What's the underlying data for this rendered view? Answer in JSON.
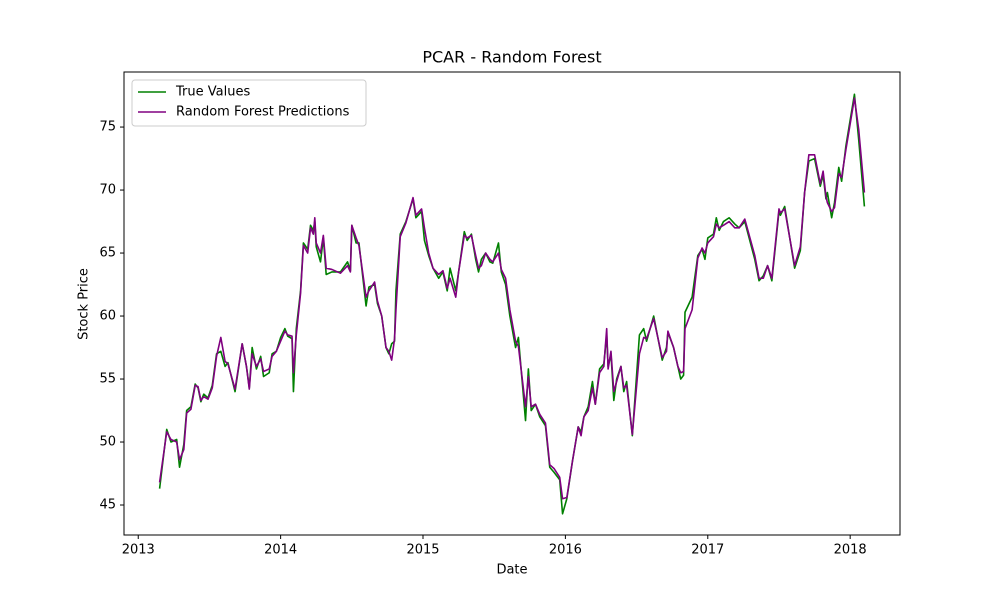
{
  "chart_data": {
    "type": "line",
    "title": "PCAR - Random Forest",
    "x_label": "Date",
    "y_label": "Stock Price",
    "xlim": [
      2012.9,
      2018.35
    ],
    "xticks": [
      2013,
      2014,
      2015,
      2016,
      2017,
      2018
    ],
    "ylim": [
      42.62,
      79.37
    ],
    "yticks": [
      45,
      50,
      55,
      60,
      65,
      70,
      75
    ],
    "grid": false,
    "legend": "upper left",
    "x": [
      2013.15,
      2013.2,
      2013.23,
      2013.27,
      2013.29,
      2013.32,
      2013.34,
      2013.37,
      2013.4,
      2013.42,
      2013.44,
      2013.46,
      2013.49,
      2013.52,
      2013.55,
      2013.58,
      2013.61,
      2013.63,
      2013.68,
      2013.73,
      2013.76,
      2013.78,
      2013.8,
      2013.83,
      2013.86,
      2013.88,
      2013.92,
      2013.94,
      2013.97,
      2014.0,
      2014.03,
      2014.05,
      2014.08,
      2014.09,
      2014.11,
      2014.14,
      2014.16,
      2014.19,
      2014.21,
      2014.23,
      2014.24,
      2014.25,
      2014.28,
      2014.3,
      2014.32,
      2014.36,
      2014.42,
      2014.47,
      2014.49,
      2014.5,
      2014.53,
      2014.55,
      2014.6,
      2014.62,
      2014.66,
      2014.68,
      2014.71,
      2014.74,
      2014.76,
      2014.78,
      2014.8,
      2014.81,
      2014.84,
      2014.88,
      2014.93,
      2014.95,
      2014.99,
      2015.01,
      2015.04,
      2015.07,
      2015.11,
      2015.14,
      2015.17,
      2015.19,
      2015.23,
      2015.25,
      2015.29,
      2015.31,
      2015.34,
      2015.37,
      2015.39,
      2015.41,
      2015.44,
      2015.47,
      2015.49,
      2015.53,
      2015.55,
      2015.58,
      2015.61,
      2015.65,
      2015.67,
      2015.72,
      2015.74,
      2015.76,
      2015.79,
      2015.82,
      2015.86,
      2015.89,
      2015.92,
      2015.96,
      2015.98,
      2016.01,
      2016.05,
      2016.09,
      2016.11,
      2016.13,
      2016.16,
      2016.19,
      2016.21,
      2016.24,
      2016.27,
      2016.29,
      2016.3,
      2016.32,
      2016.34,
      2016.36,
      2016.39,
      2016.41,
      2016.43,
      2016.47,
      2016.52,
      2016.55,
      2016.57,
      2016.62,
      2016.68,
      2016.71,
      2016.72,
      2016.76,
      2016.79,
      2016.81,
      2016.83,
      2016.84,
      2016.89,
      2016.93,
      2016.96,
      2016.98,
      2017.0,
      2017.04,
      2017.06,
      2017.08,
      2017.11,
      2017.15,
      2017.19,
      2017.22,
      2017.26,
      2017.33,
      2017.36,
      2017.39,
      2017.42,
      2017.45,
      2017.5,
      2017.51,
      2017.54,
      2017.61,
      2017.65,
      2017.68,
      2017.71,
      2017.75,
      2017.79,
      2017.81,
      2017.83,
      2017.84,
      2017.87,
      2017.89,
      2017.92,
      2017.94,
      2017.97,
      2018.03,
      2018.06,
      2018.1
    ],
    "series": [
      {
        "name": "True Values",
        "color": "#008000",
        "values": [
          46.3,
          51.0,
          50.0,
          50.2,
          48.0,
          49.8,
          52.5,
          52.8,
          54.6,
          54.3,
          53.2,
          53.8,
          53.5,
          54.5,
          57.0,
          57.2,
          56.0,
          56.3,
          54.0,
          57.8,
          56.0,
          54.3,
          57.5,
          55.8,
          56.8,
          55.2,
          55.5,
          57.0,
          57.2,
          58.3,
          59.0,
          58.4,
          58.2,
          54.0,
          59.0,
          62.0,
          65.8,
          65.3,
          67.2,
          66.8,
          67.5,
          65.5,
          64.3,
          66.2,
          63.3,
          63.5,
          63.5,
          64.3,
          63.6,
          67.2,
          65.8,
          65.8,
          60.8,
          62.3,
          62.5,
          61.0,
          60.0,
          57.5,
          57.0,
          57.8,
          58.0,
          62.0,
          66.5,
          67.5,
          69.3,
          67.8,
          68.3,
          66.0,
          64.8,
          63.8,
          63.0,
          63.5,
          62.0,
          63.8,
          62.0,
          63.5,
          66.7,
          66.0,
          66.5,
          64.5,
          63.5,
          64.5,
          65.0,
          64.3,
          64.2,
          65.8,
          63.5,
          62.5,
          60.0,
          57.5,
          58.3,
          51.7,
          55.8,
          52.5,
          53.0,
          52.0,
          51.3,
          48.0,
          47.6,
          47.0,
          44.3,
          45.5,
          48.5,
          51.2,
          50.8,
          52.0,
          52.8,
          54.8,
          53.0,
          55.8,
          56.2,
          58.5,
          56.0,
          57.0,
          53.3,
          55.0,
          56.0,
          54.0,
          54.8,
          50.5,
          58.5,
          59.0,
          58.0,
          60.0,
          56.5,
          57.5,
          58.7,
          57.5,
          56.0,
          55.0,
          55.3,
          60.3,
          61.5,
          64.8,
          65.3,
          64.5,
          66.2,
          66.5,
          67.8,
          66.8,
          67.5,
          67.8,
          67.3,
          67.0,
          67.5,
          64.5,
          62.8,
          63.2,
          64.0,
          62.8,
          68.3,
          68.0,
          68.7,
          63.8,
          65.2,
          69.8,
          72.3,
          72.5,
          70.3,
          71.2,
          69.3,
          69.8,
          67.8,
          69.0,
          71.8,
          70.7,
          73.5,
          77.6,
          74.0,
          68.7
        ]
      },
      {
        "name": "Random Forest Predictions",
        "color": "#800080",
        "values": [
          46.8,
          50.8,
          50.2,
          50.0,
          48.6,
          49.4,
          52.3,
          52.6,
          54.5,
          54.4,
          53.3,
          53.6,
          53.4,
          54.3,
          56.8,
          58.3,
          56.4,
          56.2,
          54.2,
          57.8,
          56.0,
          54.2,
          57.0,
          56.0,
          56.6,
          55.6,
          55.8,
          56.8,
          57.2,
          58.0,
          58.8,
          58.5,
          58.4,
          55.5,
          58.5,
          61.8,
          65.6,
          65.0,
          67.0,
          66.5,
          67.8,
          65.8,
          65.0,
          66.4,
          63.8,
          63.7,
          63.4,
          64.0,
          63.5,
          67.2,
          66.2,
          65.6,
          61.5,
          62.0,
          62.7,
          61.2,
          60.0,
          57.5,
          57.2,
          56.5,
          58.2,
          60.5,
          66.3,
          67.4,
          69.4,
          68.0,
          68.5,
          67.0,
          65.0,
          63.8,
          63.3,
          63.6,
          62.2,
          63.0,
          61.5,
          63.5,
          66.4,
          66.2,
          66.4,
          64.8,
          63.8,
          64.0,
          65.0,
          64.5,
          64.3,
          65.0,
          63.7,
          63.0,
          60.5,
          58.0,
          57.6,
          52.8,
          55.2,
          52.8,
          53.0,
          52.2,
          51.5,
          48.2,
          47.9,
          47.2,
          45.5,
          45.6,
          48.5,
          51.2,
          50.5,
          52.0,
          52.5,
          54.3,
          53.0,
          55.5,
          56.0,
          59.0,
          55.8,
          57.2,
          54.0,
          54.8,
          56.0,
          54.3,
          54.5,
          50.6,
          57.0,
          58.3,
          58.2,
          59.8,
          56.7,
          57.2,
          58.8,
          57.5,
          56.0,
          55.5,
          55.6,
          59.0,
          60.5,
          64.6,
          65.4,
          65.0,
          65.8,
          66.3,
          67.3,
          67.0,
          67.2,
          67.5,
          67.0,
          67.0,
          67.7,
          64.8,
          63.0,
          63.0,
          64.0,
          63.0,
          68.5,
          68.2,
          68.5,
          64.0,
          65.5,
          69.8,
          72.8,
          72.8,
          70.5,
          71.5,
          69.5,
          69.0,
          68.3,
          68.6,
          71.3,
          71.0,
          73.2,
          77.3,
          74.8,
          69.8
        ]
      }
    ]
  }
}
